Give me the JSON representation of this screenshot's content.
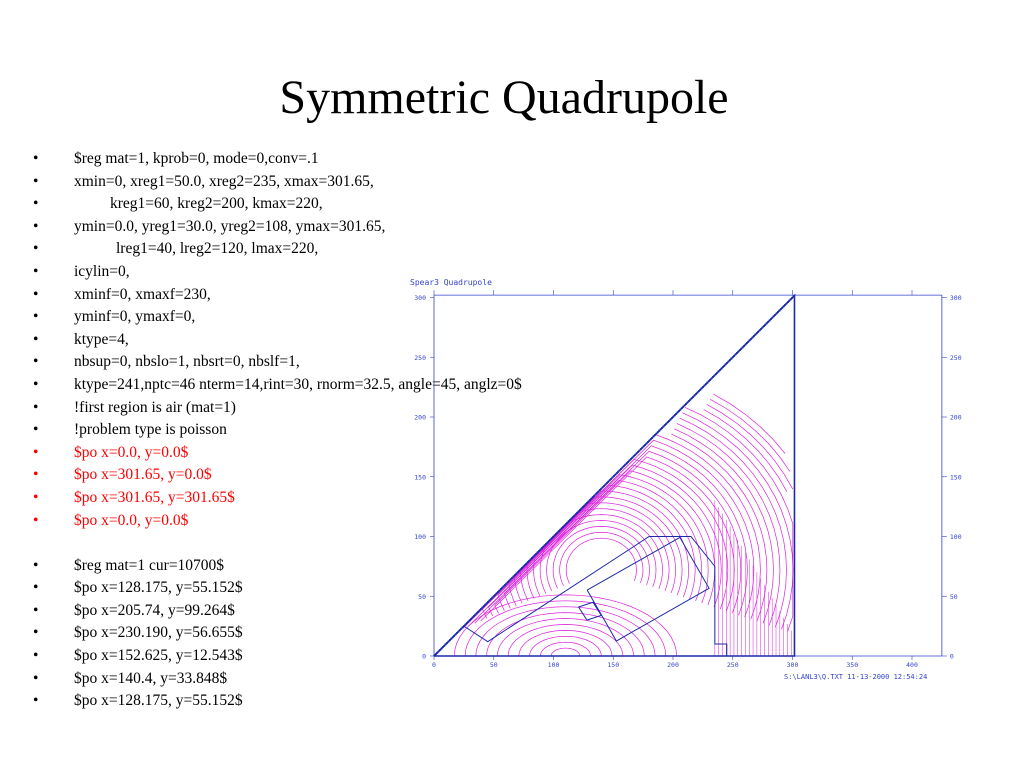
{
  "slide": {
    "title": "Symmetric Quadrupole"
  },
  "bullets": [
    {
      "text": "$reg mat=1, kprob=0, mode=0,conv=.1",
      "color": "black",
      "indent": 0
    },
    {
      "text": "xmin=0, xreg1=50.0, xreg2=235, xmax=301.65,",
      "color": "black",
      "indent": 0
    },
    {
      "text": "kreg1=60, kreg2=200, kmax=220,",
      "color": "black",
      "indent": 1
    },
    {
      "text": "ymin=0.0, yreg1=30.0, yreg2=108, ymax=301.65,",
      "color": "black",
      "indent": 0
    },
    {
      "text": "lreg1=40, lreg2=120, lmax=220,",
      "color": "black",
      "indent": 2
    },
    {
      "text": "icylin=0,",
      "color": "black",
      "indent": 0
    },
    {
      "text": "xminf=0, xmaxf=230,",
      "color": "black",
      "indent": 0
    },
    {
      "text": "yminf=0, ymaxf=0,",
      "color": "black",
      "indent": 0
    },
    {
      "text": "ktype=4,",
      "color": "black",
      "indent": 0
    },
    {
      "text": "nbsup=0, nbslo=1, nbsrt=0, nbslf=1,",
      "color": "black",
      "indent": 0
    },
    {
      "text": "ktype=241,nptc=46 nterm=14,rint=30, rnorm=32.5, angle=45, anglz=0$",
      "color": "black",
      "indent": 0
    },
    {
      "text": "!first region is air (mat=1)",
      "color": "black",
      "indent": 0
    },
    {
      "text": "!problem type is poisson",
      "color": "black",
      "indent": 0
    },
    {
      "text": "$po x=0.0, y=0.0$",
      "color": "red",
      "indent": 0
    },
    {
      "text": "$po x=301.65, y=0.0$",
      "color": "red",
      "indent": 0
    },
    {
      "text": "$po x=301.65, y=301.65$",
      "color": "red",
      "indent": 0
    },
    {
      "text": "$po x=0.0, y=0.0$",
      "color": "red",
      "indent": 0
    },
    {
      "text": "",
      "color": "black",
      "indent": 0,
      "gap": true
    },
    {
      "text": "$reg mat=1 cur=10700$",
      "color": "black",
      "indent": 0
    },
    {
      "text": "$po x=128.175, y=55.152$",
      "color": "black",
      "indent": 0
    },
    {
      "text": "$po x=205.74, y=99.264$",
      "color": "black",
      "indent": 0
    },
    {
      "text": "$po x=230.190, y=56.655$",
      "color": "black",
      "indent": 0
    },
    {
      "text": "$po x=152.625, y=12.543$",
      "color": "black",
      "indent": 0
    },
    {
      "text": "$po x=140.4, y=33.848$",
      "color": "black",
      "indent": 0
    },
    {
      "text": "$po x=128.175, y=55.152$",
      "color": "black",
      "indent": 0
    }
  ],
  "plot": {
    "title": "Spear3 Quadrupole",
    "footer": "S:\\LANL3\\Q.TXT 11-13-2000  12:54:24",
    "x_ticks": [
      "0",
      "50",
      "100",
      "150",
      "200",
      "250",
      "300",
      "350",
      "400"
    ],
    "y_ticks": [
      "0",
      "50",
      "100",
      "150",
      "200",
      "250",
      "300"
    ],
    "colors": {
      "axis": "#3344cc",
      "boundary": "#1a2aa8",
      "field": "#dd22dd"
    },
    "boundary_points": [
      [
        0,
        0
      ],
      [
        301.65,
        0
      ],
      [
        301.65,
        301.65
      ],
      [
        0,
        0
      ]
    ],
    "coil_points": [
      [
        128.175,
        55.152
      ],
      [
        205.74,
        99.264
      ],
      [
        230.19,
        56.655
      ],
      [
        152.625,
        12.543
      ],
      [
        140.4,
        33.848
      ],
      [
        128.175,
        55.152
      ]
    ]
  }
}
